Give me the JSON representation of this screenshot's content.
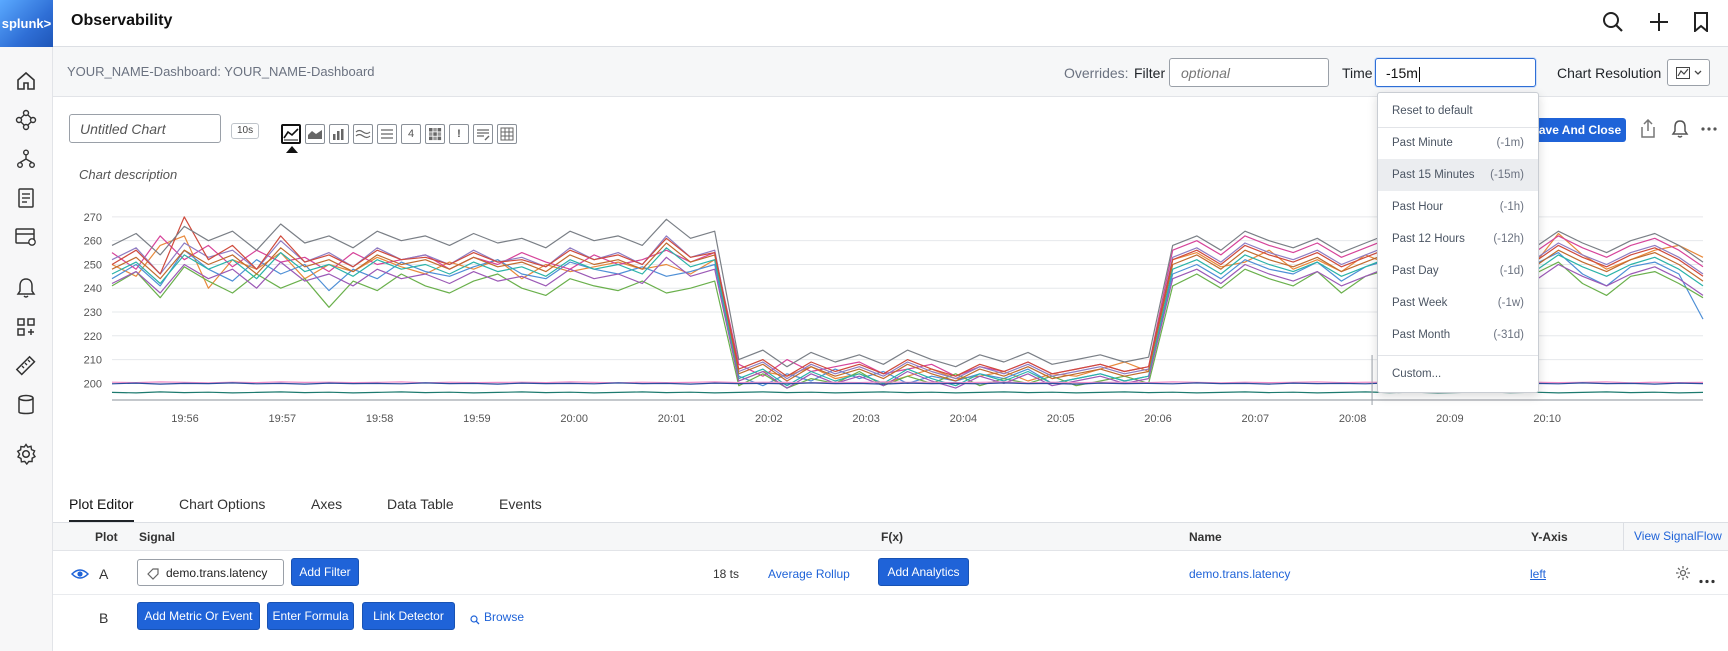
{
  "app": {
    "logo": "splunk>",
    "title": "Observability"
  },
  "topbar": {
    "icons": [
      "search-icon",
      "plus-icon",
      "bookmark-icon"
    ]
  },
  "sidebar": {
    "icons": [
      "home-icon",
      "service-map-icon",
      "apm-icon",
      "log-icon",
      "infrastructure-icon",
      "bell-icon",
      "dashboards-icon",
      "ruler-icon",
      "database-icon",
      "settings-icon"
    ]
  },
  "header": {
    "breadcrumb": "YOUR_NAME-Dashboard: YOUR_NAME-Dashboard",
    "overrides_label": "Overrides:",
    "filter_label": "Filter",
    "filter_placeholder": "optional",
    "time_label": "Time",
    "time_value": "-15m",
    "chart_resolution_label": "Chart Resolution"
  },
  "chart_header": {
    "title_placeholder": "Untitled Chart",
    "resolution_tag": "10s",
    "chart_types": [
      "line-chart-icon",
      "area-chart-icon",
      "column-chart-icon",
      "histogram-icon",
      "list-icon",
      "single-value-icon",
      "heatmap-icon",
      "event-feed-icon",
      "text-icon",
      "table-icon"
    ],
    "single_value_glyph": "4",
    "event_feed_glyph": "!",
    "description": "Chart description",
    "save_label": "Save And Close"
  },
  "chart_data": {
    "type": "line",
    "title": "",
    "xlabel": "",
    "ylabel": "",
    "ylim": [
      193,
      275
    ],
    "yticks": [
      200,
      210,
      220,
      230,
      240,
      250,
      260,
      270
    ],
    "xticks": [
      "19:56",
      "19:57",
      "19:58",
      "19:59",
      "20:00",
      "20:01",
      "20:02",
      "20:03",
      "20:04",
      "20:05",
      "20:06",
      "20:07",
      "20:08",
      "20:09",
      "20:10"
    ],
    "high_phase_levels": {
      "start": "19:55:30",
      "drop": "20:00:10",
      "rise": "20:05:00",
      "end": "20:10"
    },
    "series_colors": [
      "#e8893b",
      "#4e8fd6",
      "#d6449a",
      "#6ab04c",
      "#8e7cc3",
      "#c06b2e",
      "#2bb3a8",
      "#cf4a3c",
      "#7a7f86",
      "#9b59b6",
      "#f08fc8",
      "#2c4ea0",
      "#1d7a6f"
    ],
    "series": [
      {
        "name": "",
        "values": [
          250,
          245,
          258,
          262,
          240,
          252,
          248,
          255,
          244,
          250,
          247,
          253,
          249,
          246,
          251,
          248,
          252,
          244,
          250,
          247,
          249,
          251,
          248,
          250,
          246,
          252,
          201,
          205,
          203,
          207,
          202,
          204,
          200,
          203,
          206,
          202,
          203,
          205,
          201,
          204,
          203,
          206,
          209,
          205,
          252,
          255,
          249,
          251,
          256,
          248,
          252,
          247,
          254,
          250,
          248,
          255,
          246,
          252,
          249,
          250,
          263,
          254,
          248,
          252,
          256,
          258,
          253
        ]
      },
      {
        "name": "",
        "values": [
          244,
          250,
          241,
          256,
          248,
          243,
          252,
          246,
          250,
          239,
          248,
          244,
          251,
          247,
          245,
          249,
          252,
          246,
          244,
          251,
          248,
          246,
          249,
          245,
          247,
          250,
          203,
          199,
          204,
          201,
          206,
          202,
          205,
          200,
          203,
          201,
          204,
          202,
          206,
          200,
          202,
          204,
          201,
          203,
          246,
          250,
          244,
          252,
          248,
          246,
          251,
          243,
          249,
          252,
          245,
          248,
          251,
          246,
          243,
          250,
          255,
          246,
          241,
          249,
          251,
          246,
          227
        ]
      },
      {
        "name": "",
        "values": [
          255,
          248,
          262,
          252,
          258,
          249,
          256,
          251,
          253,
          247,
          255,
          250,
          252,
          254,
          248,
          253,
          250,
          255,
          251,
          248,
          254,
          250,
          252,
          256,
          251,
          255,
          208,
          203,
          210,
          205,
          207,
          209,
          204,
          206,
          208,
          203,
          207,
          205,
          209,
          204,
          206,
          208,
          205,
          207,
          256,
          260,
          254,
          262,
          258,
          255,
          259,
          253,
          257,
          261,
          254,
          258,
          256,
          252,
          258,
          255,
          262,
          257,
          253,
          258,
          261,
          256,
          249
        ]
      },
      {
        "name": "",
        "values": [
          241,
          247,
          236,
          249,
          243,
          238,
          246,
          240,
          244,
          232,
          243,
          239,
          246,
          241,
          238,
          243,
          246,
          240,
          237,
          244,
          241,
          239,
          243,
          238,
          240,
          243,
          199,
          204,
          198,
          202,
          200,
          205,
          199,
          203,
          200,
          204,
          199,
          202,
          200,
          203,
          199,
          201,
          203,
          200,
          241,
          246,
          240,
          248,
          244,
          241,
          247,
          238,
          245,
          248,
          240,
          244,
          247,
          241,
          238,
          246,
          251,
          242,
          237,
          245,
          247,
          242,
          236
        ]
      },
      {
        "name": "",
        "values": [
          252,
          257,
          246,
          259,
          253,
          256,
          248,
          260,
          251,
          255,
          249,
          257,
          252,
          254,
          250,
          256,
          251,
          253,
          249,
          257,
          252,
          255,
          250,
          262,
          253,
          256,
          205,
          209,
          202,
          208,
          204,
          207,
          203,
          209,
          205,
          202,
          207,
          204,
          208,
          203,
          205,
          207,
          204,
          206,
          253,
          257,
          251,
          259,
          255,
          252,
          256,
          250,
          254,
          258,
          251,
          255,
          253,
          249,
          255,
          252,
          259,
          254,
          250,
          255,
          258,
          253,
          246
        ]
      },
      {
        "name": "",
        "values": [
          248,
          253,
          244,
          256,
          250,
          254,
          246,
          257,
          249,
          252,
          247,
          254,
          250,
          252,
          248,
          253,
          249,
          251,
          247,
          254,
          250,
          252,
          248,
          259,
          251,
          254,
          204,
          208,
          201,
          207,
          203,
          206,
          202,
          208,
          204,
          201,
          206,
          203,
          207,
          202,
          204,
          206,
          203,
          205,
          250,
          254,
          248,
          256,
          252,
          249,
          253,
          247,
          251,
          255,
          248,
          252,
          250,
          246,
          252,
          249,
          256,
          251,
          247,
          252,
          255,
          250,
          243
        ]
      },
      {
        "name": "",
        "values": [
          246,
          251,
          242,
          254,
          248,
          252,
          244,
          255,
          247,
          250,
          245,
          252,
          248,
          250,
          246,
          251,
          247,
          249,
          245,
          252,
          248,
          250,
          246,
          257,
          249,
          252,
          202,
          206,
          199,
          205,
          201,
          204,
          200,
          206,
          202,
          199,
          204,
          201,
          205,
          200,
          202,
          204,
          201,
          203,
          248,
          252,
          246,
          254,
          250,
          247,
          251,
          245,
          249,
          253,
          246,
          250,
          248,
          244,
          250,
          247,
          254,
          249,
          245,
          250,
          253,
          248,
          241
        ]
      },
      {
        "name": "",
        "values": [
          250,
          256,
          246,
          270,
          252,
          258,
          248,
          262,
          251,
          254,
          249,
          256,
          252,
          253,
          250,
          255,
          251,
          252,
          249,
          256,
          252,
          254,
          250,
          261,
          253,
          255,
          206,
          210,
          203,
          209,
          205,
          208,
          204,
          210,
          206,
          203,
          208,
          205,
          209,
          204,
          206,
          208,
          205,
          207,
          252,
          256,
          250,
          258,
          254,
          251,
          255,
          249,
          253,
          257,
          250,
          254,
          252,
          248,
          254,
          251,
          258,
          253,
          249,
          254,
          257,
          252,
          245
        ]
      },
      {
        "name": "",
        "values": [
          258,
          263,
          254,
          266,
          260,
          264,
          256,
          267,
          259,
          262,
          257,
          264,
          260,
          262,
          258,
          263,
          259,
          261,
          257,
          264,
          260,
          262,
          258,
          269,
          261,
          264,
          210,
          214,
          207,
          213,
          209,
          212,
          208,
          214,
          210,
          207,
          212,
          209,
          213,
          208,
          210,
          212,
          209,
          211,
          258,
          262,
          256,
          264,
          260,
          257,
          261,
          255,
          259,
          263,
          256,
          260,
          258,
          254,
          260,
          257,
          264,
          259,
          255,
          260,
          263,
          258,
          251
        ]
      },
      {
        "name": "",
        "values": [
          242,
          247,
          238,
          250,
          244,
          248,
          240,
          251,
          243,
          246,
          241,
          248,
          244,
          246,
          242,
          247,
          243,
          245,
          241,
          248,
          244,
          246,
          242,
          253,
          245,
          248,
          201,
          205,
          198,
          204,
          200,
          203,
          199,
          205,
          201,
          198,
          203,
          200,
          204,
          199,
          201,
          203,
          200,
          202,
          244,
          248,
          242,
          250,
          246,
          243,
          247,
          241,
          245,
          249,
          242,
          246,
          244,
          240,
          246,
          243,
          250,
          245,
          241,
          246,
          249,
          244,
          237
        ]
      },
      {
        "name": "",
        "values": [
          200.5,
          200.3,
          200.6,
          200.4,
          200.2,
          200.5,
          200.3,
          200.6,
          200.4,
          200.5,
          200.3,
          200.4,
          200.6,
          200.2,
          200.5,
          200.3,
          200.4,
          200.5,
          200.3,
          200.6,
          200.4,
          200.2,
          200.5,
          200.3,
          200.4,
          200.6,
          200.3,
          200.5,
          200.4,
          200.2,
          200.5,
          200.3,
          200.6,
          200.4,
          200.5,
          200.3,
          200.4,
          200.6,
          200.2,
          200.5,
          200.3,
          200.4,
          200.5,
          200.3,
          200.6,
          200.4,
          200.2,
          200.5,
          200.3,
          200.4,
          200.6,
          200.3,
          200.5,
          200.4,
          200.2,
          200.5,
          200.3,
          200.6,
          200.4,
          200.5,
          200.3,
          200.4,
          200.6,
          200.2,
          200.5,
          200.3,
          200.4
        ]
      },
      {
        "name": "",
        "values": [
          199.8,
          200.1,
          199.7,
          200.0,
          199.9,
          200.2,
          199.8,
          200.0,
          199.7,
          200.1,
          199.9,
          200.0,
          199.8,
          200.2,
          199.9,
          200.0,
          199.7,
          200.1,
          199.9,
          200.0,
          199.8,
          200.2,
          199.9,
          200.0,
          199.7,
          200.1,
          199.9,
          200.0,
          199.8,
          200.2,
          199.9,
          200.0,
          199.7,
          200.1,
          199.9,
          200.0,
          199.8,
          200.2,
          199.9,
          200.0,
          199.7,
          200.1,
          199.9,
          200.0,
          199.8,
          200.2,
          199.9,
          200.0,
          199.7,
          200.1,
          199.9,
          200.0,
          199.8,
          200.2,
          199.9,
          200.0,
          199.7,
          200.1,
          199.9,
          200.0,
          199.8,
          200.2,
          199.9,
          200.0,
          199.7,
          200.1,
          199.9
        ]
      },
      {
        "name": "",
        "values": [
          196.2,
          196.0,
          196.4,
          196.1,
          196.3,
          196.0,
          196.2,
          196.4,
          196.1,
          196.3,
          196.0,
          196.2,
          196.4,
          196.1,
          196.3,
          196.0,
          196.2,
          196.4,
          196.1,
          196.3,
          196.0,
          196.2,
          196.4,
          196.1,
          196.3,
          196.0,
          196.2,
          196.4,
          196.1,
          196.3,
          196.0,
          196.2,
          196.4,
          196.1,
          196.3,
          196.0,
          196.2,
          196.4,
          196.1,
          196.3,
          196.0,
          196.2,
          196.4,
          196.1,
          196.3,
          196.0,
          196.2,
          196.4,
          196.1,
          196.3,
          196.0,
          196.2,
          196.4,
          196.1,
          196.3,
          196.0,
          196.2,
          196.4,
          196.1,
          196.3,
          196.0,
          196.2,
          196.4,
          196.1,
          196.3,
          196.0,
          196.2
        ]
      }
    ],
    "grid": true,
    "legend": "none"
  },
  "tabs": [
    "Plot Editor",
    "Chart Options",
    "Axes",
    "Data Table",
    "Events"
  ],
  "table": {
    "headers": {
      "plot": "Plot",
      "signal": "Signal",
      "fx": "F(x)",
      "name": "Name",
      "yaxis": "Y-Axis"
    },
    "view_signalflow": "View SignalFlow",
    "row_a": {
      "letter": "A",
      "signal": "demo.trans.latency",
      "add_filter": "Add Filter",
      "ts_count": "18 ts",
      "rollup": "Average Rollup",
      "add_analytics": "Add Analytics",
      "name": "demo.trans.latency",
      "yaxis": "left"
    },
    "row_b": {
      "letter": "B",
      "add_metric": "Add Metric Or Event",
      "enter_formula": "Enter Formula",
      "link_detector": "Link Detector",
      "browse": "Browse"
    }
  },
  "time_dropdown": {
    "reset": "Reset to default",
    "items": [
      {
        "label": "Past Minute",
        "short": "(-1m)"
      },
      {
        "label": "Past 15 Minutes",
        "short": "(-15m)"
      },
      {
        "label": "Past Hour",
        "short": "(-1h)"
      },
      {
        "label": "Past 12 Hours",
        "short": "(-12h)"
      },
      {
        "label": "Past Day",
        "short": "(-1d)"
      },
      {
        "label": "Past Week",
        "short": "(-1w)"
      },
      {
        "label": "Past Month",
        "short": "(-31d)"
      }
    ],
    "selected_index": 1,
    "custom": "Custom..."
  }
}
